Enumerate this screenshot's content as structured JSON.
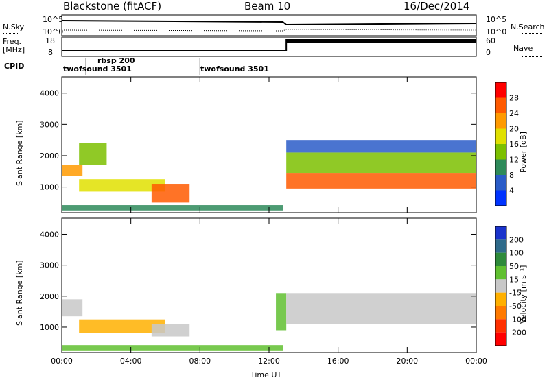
{
  "header": {
    "station": "Blackstone (fitACF)",
    "beam": "Beam 10",
    "date": "16/Dec/2014"
  },
  "status_panels": {
    "nsky_label": "N.Sky",
    "nsearch_label": "N.Search",
    "noise_ticks": [
      "10^5",
      "10^0"
    ],
    "freq_label_1": "Freq.",
    "freq_label_2": "[MHz]",
    "freq_ticks": [
      "18",
      "8"
    ],
    "nave_label": "Nave",
    "nave_ticks": [
      "60",
      "0"
    ],
    "cpid_label": "CPID",
    "cpid_segments": [
      {
        "name": "twofsound 3501",
        "start_hour": 0.0
      },
      {
        "name": "rbsp 200",
        "start_hour": 1.4
      },
      {
        "name": "twofsound 3501",
        "start_hour": 8.0
      }
    ]
  },
  "chart_data": [
    {
      "type": "heatmap",
      "title": "",
      "xlabel": "Time UT",
      "ylabel": "Slant Range [km]",
      "colorbar_label": "Power [dB]",
      "x_ticks": [
        "00:00",
        "04:00",
        "08:00",
        "12:00",
        "16:00",
        "20:00",
        "00:00"
      ],
      "xlim": [
        0,
        24
      ],
      "y_ticks": [
        1000,
        2000,
        3000,
        4000
      ],
      "ylim": [
        180,
        4520
      ],
      "colorbar_ticks": [
        4,
        8,
        12,
        16,
        20,
        24,
        28
      ],
      "colorbar_colors": [
        "#0033ff",
        "#2a5cc8",
        "#2e8a5a",
        "#7cc000",
        "#e0e000",
        "#ff9a00",
        "#ff5a00",
        "#ff0000"
      ],
      "echo_bands": [
        {
          "t_start": 0.0,
          "t_end": 1.2,
          "r_start": 1350,
          "r_end": 1700,
          "power": 24
        },
        {
          "t_start": 1.0,
          "t_end": 2.6,
          "r_start": 1700,
          "r_end": 2400,
          "power": 14
        },
        {
          "t_start": 1.0,
          "t_end": 6.0,
          "r_start": 850,
          "r_end": 1250,
          "power": 20
        },
        {
          "t_start": 5.2,
          "t_end": 7.4,
          "r_start": 500,
          "r_end": 1100,
          "power": 26
        },
        {
          "t_start": 0.0,
          "t_end": 12.8,
          "r_start": 250,
          "r_end": 420,
          "power": 10
        },
        {
          "t_start": 13.0,
          "t_end": 24.0,
          "r_start": 950,
          "r_end": 1450,
          "power": 26
        },
        {
          "t_start": 13.0,
          "t_end": 24.0,
          "r_start": 1450,
          "r_end": 2100,
          "power": 14
        },
        {
          "t_start": 13.0,
          "t_end": 24.0,
          "r_start": 2100,
          "r_end": 2500,
          "power": 8
        }
      ]
    },
    {
      "type": "heatmap",
      "title": "",
      "xlabel": "Time UT",
      "ylabel": "Slant Range [km]",
      "colorbar_label": "Velocity [m s⁻¹]",
      "x_ticks": [
        "00:00",
        "04:00",
        "08:00",
        "12:00",
        "16:00",
        "20:00",
        "00:00"
      ],
      "xlim": [
        0,
        24
      ],
      "y_ticks": [
        1000,
        2000,
        3000,
        4000
      ],
      "ylim": [
        180,
        4520
      ],
      "colorbar_ticks": [
        "200",
        "100",
        "50",
        "15",
        "-15",
        "-50",
        "-100",
        "-200"
      ],
      "colorbar_colors": [
        "#1a33cc",
        "#2e6a8a",
        "#2e8a3a",
        "#60c030",
        "#c8c8c8",
        "#ffb000",
        "#ff7a00",
        "#ff3000",
        "#ff0000"
      ],
      "echo_bands": [
        {
          "t_start": 0.0,
          "t_end": 1.2,
          "r_start": 1350,
          "r_end": 1900,
          "velocity": 0
        },
        {
          "t_start": 1.0,
          "t_end": 6.0,
          "r_start": 800,
          "r_end": 1250,
          "velocity": -50
        },
        {
          "t_start": 5.2,
          "t_end": 7.4,
          "r_start": 700,
          "r_end": 1100,
          "velocity": 0
        },
        {
          "t_start": 0.0,
          "t_end": 12.8,
          "r_start": 250,
          "r_end": 420,
          "velocity": 30
        },
        {
          "t_start": 12.4,
          "t_end": 13.0,
          "r_start": 900,
          "r_end": 2100,
          "velocity": 30
        },
        {
          "t_start": 13.0,
          "t_end": 24.0,
          "r_start": 1100,
          "r_end": 2100,
          "velocity": 0
        }
      ]
    }
  ]
}
